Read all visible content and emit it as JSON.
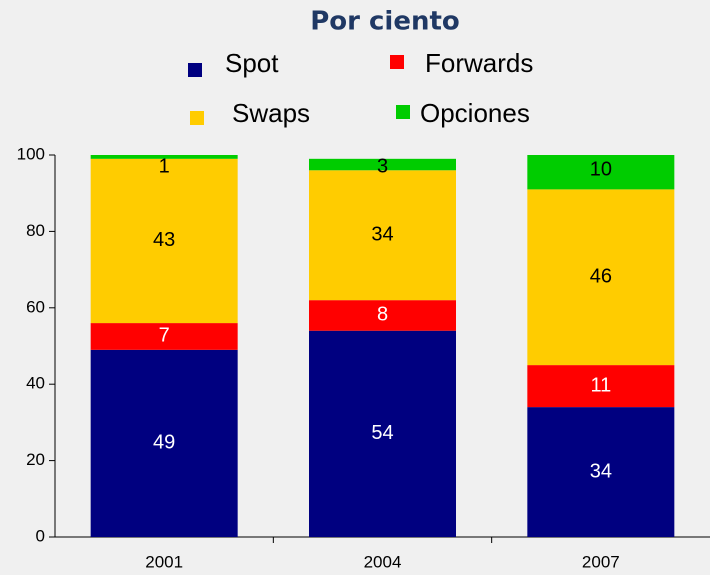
{
  "chart_data": {
    "type": "stacked_bar",
    "title": "Por ciento",
    "categories": [
      "2001",
      "2004",
      "2007"
    ],
    "series": [
      {
        "name": "Spot",
        "color": "#000080",
        "label_color": "#ffffff",
        "values": [
          49,
          54,
          34
        ]
      },
      {
        "name": "Forwards",
        "color": "#ff0000",
        "label_color": "#ffffff",
        "values": [
          7,
          8,
          11
        ]
      },
      {
        "name": "Swaps",
        "color": "#ffcc00",
        "label_color": "#000000",
        "values": [
          43,
          34,
          46
        ]
      },
      {
        "name": "Opciones",
        "color": "#00cc00",
        "label_color": "#000000",
        "values": [
          1,
          3,
          10
        ]
      }
    ],
    "ylim": [
      0,
      100
    ],
    "yticks": [
      0,
      20,
      40,
      60,
      80,
      100
    ],
    "grid": false
  }
}
